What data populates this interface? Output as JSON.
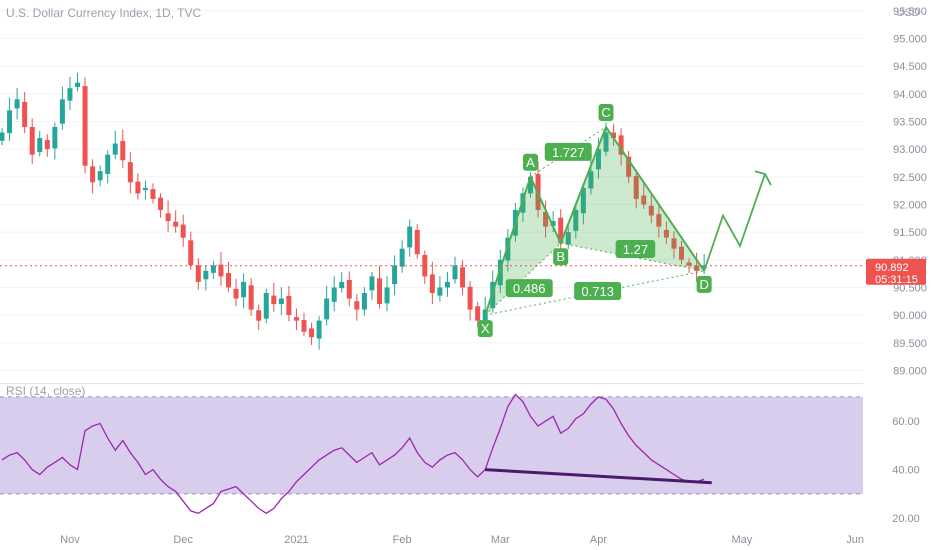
{
  "chart_data": [
    {
      "type": "candlestick",
      "title": "U.S. Dollar Currency Index, 1D, TVC",
      "currency": "USD",
      "y_ticks": [
        "95.500",
        "95.000",
        "94.500",
        "94.000",
        "93.500",
        "93.000",
        "92.500",
        "92.000",
        "91.500",
        "91.000",
        "90.500",
        "90.000",
        "89.500",
        "89.000"
      ],
      "ylim": [
        88.9,
        95.55
      ],
      "x_ticks": [
        "Nov",
        "Dec",
        "2021",
        "Feb",
        "Mar",
        "Apr",
        "May",
        "Jun"
      ],
      "last_price": "90.892",
      "countdown": "05:31:15",
      "colors": {
        "up": "#26a69a",
        "down": "#ef5350",
        "pattern": "#4caf50",
        "price_line": "#ef5350"
      },
      "closes": [
        93.3,
        93.7,
        93.9,
        93.4,
        92.9,
        93.2,
        93.0,
        93.4,
        93.9,
        94.1,
        94.2,
        92.7,
        92.4,
        92.6,
        92.9,
        93.1,
        92.8,
        92.4,
        92.2,
        92.3,
        92.1,
        91.9,
        91.7,
        91.6,
        91.4,
        90.9,
        90.6,
        90.8,
        90.9,
        90.7,
        90.5,
        90.3,
        90.6,
        90.1,
        89.9,
        90.4,
        90.2,
        90.3,
        90.0,
        89.9,
        89.7,
        89.6,
        89.9,
        90.3,
        90.5,
        90.6,
        90.3,
        90.1,
        90.4,
        90.7,
        90.2,
        90.5,
        90.9,
        91.2,
        91.6,
        91.1,
        90.7,
        90.4,
        90.5,
        90.6,
        90.9,
        90.5,
        90.1,
        89.9,
        90.1,
        90.6,
        91.0,
        91.4,
        91.9,
        92.2,
        92.5,
        91.9,
        91.6,
        91.7,
        91.3,
        91.5,
        91.9,
        92.3,
        92.6,
        93.0,
        93.3,
        93.2,
        92.9,
        92.5,
        92.1,
        92.0,
        91.8,
        91.6,
        91.4,
        91.2,
        91.0,
        90.9,
        90.8,
        90.9
      ]
    },
    {
      "type": "harmonic_pattern",
      "points": [
        {
          "label": "X",
          "price": 90.0
        },
        {
          "label": "A",
          "price": 92.5
        },
        {
          "label": "B",
          "price": 91.3
        },
        {
          "label": "C",
          "price": 93.4
        },
        {
          "label": "D",
          "price": 90.8
        }
      ],
      "ratios": [
        "1.727",
        "0.486",
        "1.27",
        "0.713"
      ]
    },
    {
      "type": "line",
      "title": "RSI (14, close)",
      "y_ticks": [
        "60.00",
        "40.00",
        "20.00"
      ],
      "ylim": [
        18,
        72
      ],
      "band": [
        30,
        70
      ],
      "colors": {
        "line": "#9c27b0",
        "band": "#d1c4e9",
        "divergence": "#4a1a6b"
      },
      "values": [
        44,
        46,
        47,
        44,
        40,
        38,
        41,
        43,
        45,
        42,
        40,
        56,
        58,
        59,
        53,
        48,
        52,
        47,
        43,
        38,
        40,
        36,
        33,
        31,
        27,
        23,
        22,
        24,
        26,
        31,
        32,
        33,
        30,
        27,
        24,
        22,
        24,
        28,
        31,
        35,
        38,
        41,
        44,
        46,
        48,
        49,
        46,
        43,
        45,
        47,
        42,
        44,
        46,
        49,
        53,
        47,
        43,
        41,
        44,
        46,
        47,
        44,
        40,
        37,
        40,
        49,
        57,
        66,
        71,
        68,
        62,
        58,
        60,
        62,
        55,
        57,
        61,
        63,
        67,
        70,
        69,
        65,
        59,
        54,
        50,
        47,
        44,
        42,
        40,
        38,
        36,
        35,
        35,
        36
      ]
    }
  ]
}
